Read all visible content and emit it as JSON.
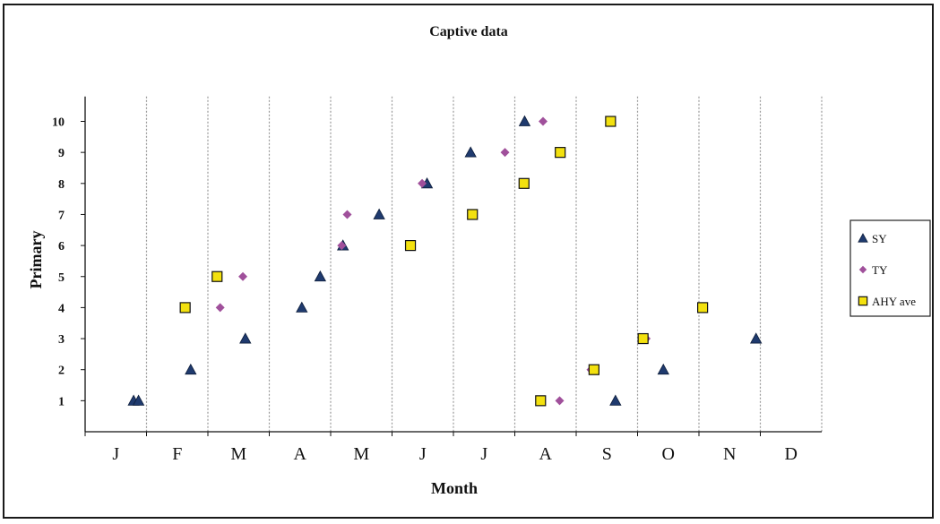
{
  "chart_data": {
    "type": "scatter",
    "title": "Captive data",
    "xlabel": "Month",
    "ylabel": "Primary",
    "categories": [
      "J",
      "F",
      "M",
      "A",
      "M",
      "J",
      "J",
      "A",
      "S",
      "O",
      "N",
      "D"
    ],
    "ylim": [
      0,
      10
    ],
    "yticks": [
      "1",
      "2",
      "3",
      "4",
      "5",
      "6",
      "7",
      "8",
      "9",
      "10"
    ],
    "grid": "vertical dashed separators between months",
    "legend_position": "right",
    "series": [
      {
        "name": "SY",
        "marker": "triangle",
        "color": "#1f3a6e",
        "points": [
          {
            "x": 0.79,
            "y": 1
          },
          {
            "x": 0.87,
            "y": 1
          },
          {
            "x": 1.72,
            "y": 2
          },
          {
            "x": 2.61,
            "y": 3
          },
          {
            "x": 3.53,
            "y": 4
          },
          {
            "x": 3.83,
            "y": 5
          },
          {
            "x": 4.2,
            "y": 6
          },
          {
            "x": 4.79,
            "y": 7
          },
          {
            "x": 5.57,
            "y": 8
          },
          {
            "x": 6.28,
            "y": 9
          },
          {
            "x": 7.16,
            "y": 10
          },
          {
            "x": 8.64,
            "y": 1
          },
          {
            "x": 9.42,
            "y": 2
          },
          {
            "x": 10.93,
            "y": 3
          }
        ]
      },
      {
        "name": "TY",
        "marker": "diamond",
        "color": "#a0509b",
        "points": [
          {
            "x": 2.2,
            "y": 4
          },
          {
            "x": 2.57,
            "y": 5
          },
          {
            "x": 4.18,
            "y": 6
          },
          {
            "x": 4.27,
            "y": 7
          },
          {
            "x": 5.49,
            "y": 8
          },
          {
            "x": 6.84,
            "y": 9
          },
          {
            "x": 7.46,
            "y": 10
          },
          {
            "x": 7.73,
            "y": 1
          },
          {
            "x": 8.24,
            "y": 2
          },
          {
            "x": 9.14,
            "y": 3
          }
        ]
      },
      {
        "name": "AHY ave",
        "marker": "square",
        "color": "#f3e10f",
        "points": [
          {
            "x": 1.63,
            "y": 4
          },
          {
            "x": 2.15,
            "y": 5
          },
          {
            "x": 5.3,
            "y": 6
          },
          {
            "x": 6.31,
            "y": 7
          },
          {
            "x": 7.15,
            "y": 8
          },
          {
            "x": 7.74,
            "y": 9
          },
          {
            "x": 8.56,
            "y": 10
          },
          {
            "x": 7.42,
            "y": 1
          },
          {
            "x": 8.29,
            "y": 2
          },
          {
            "x": 9.09,
            "y": 3
          },
          {
            "x": 10.06,
            "y": 4
          }
        ]
      }
    ]
  }
}
